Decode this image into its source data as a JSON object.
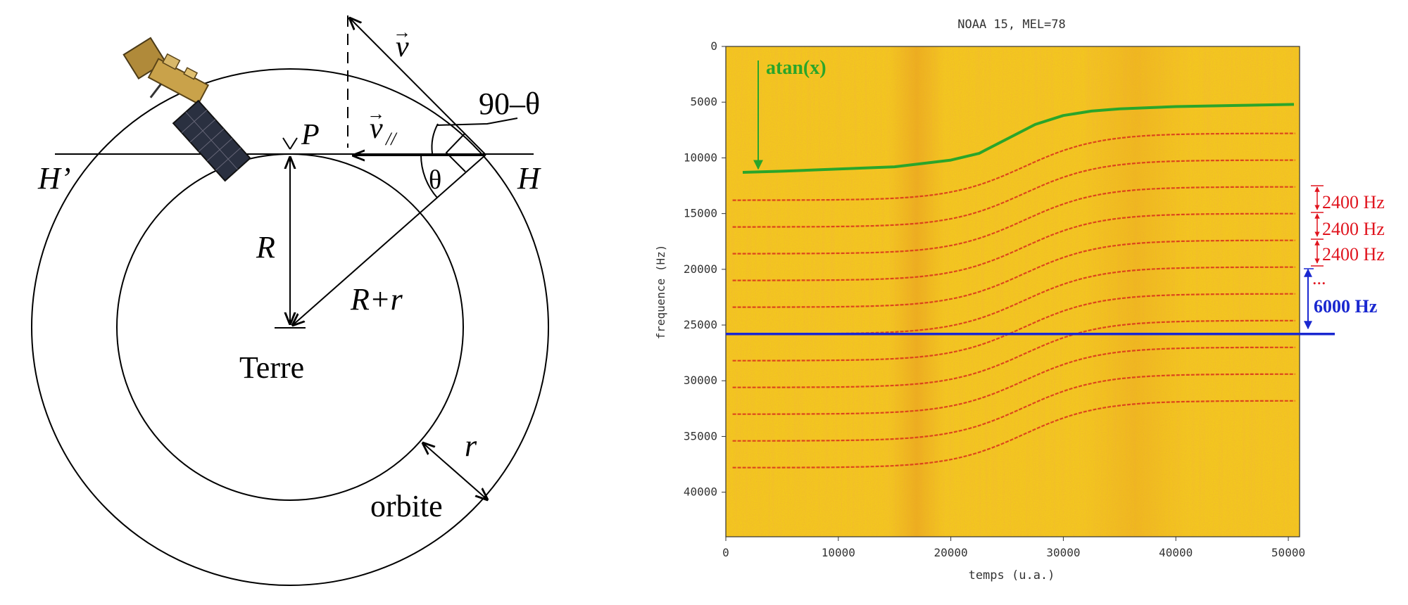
{
  "geometry_diagram": {
    "label_v": "v",
    "label_v_parallel": "v",
    "label_parallel_sub": "//",
    "label_90_theta": "90–θ",
    "label_theta": "θ",
    "label_P": "P",
    "label_H_prime": "H’",
    "label_H": "H",
    "label_R": "R",
    "label_R_plus_r": "R+r",
    "label_r": "r",
    "label_terre": "Terre",
    "label_orbite": "orbite"
  },
  "spectrogram": {
    "title": "NOAA 15, MEL=78",
    "xlabel": "temps (u.a.)",
    "ylabel": "frequence (Hz)",
    "x_ticks": [
      "0",
      "10000",
      "20000",
      "30000",
      "40000",
      "50000"
    ],
    "y_ticks": [
      "0",
      "5000",
      "10000",
      "15000",
      "20000",
      "25000",
      "30000",
      "35000",
      "40000"
    ],
    "annotation_atan": "atan(x)",
    "annotation_2400_a": "2400 Hz",
    "annotation_2400_b": "2400 Hz",
    "annotation_2400_c": "2400 Hz",
    "annotation_dots": "...",
    "annotation_6000": "6000 Hz",
    "colors": {
      "background": "#f3c81e",
      "line": "#d8301a",
      "atan_curve": "#2aa52a",
      "reference_line": "#1a28d0",
      "red_annotation": "#e0141e",
      "blue_annotation": "#1a28d0"
    }
  },
  "chart_data": {
    "type": "heatmap",
    "title": "NOAA 15, MEL=78",
    "xlabel": "temps (u.a.)",
    "ylabel": "frequence (Hz)",
    "xlim": [
      0,
      51000
    ],
    "ylim": [
      44000,
      0
    ],
    "x_ticks": [
      0,
      10000,
      20000,
      30000,
      40000,
      50000
    ],
    "y_ticks": [
      0,
      5000,
      10000,
      15000,
      20000,
      25000,
      30000,
      35000,
      40000
    ],
    "doppler_curve": {
      "name": "atan(x)",
      "x": [
        1500,
        5000,
        10000,
        15000,
        20000,
        22500,
        25000,
        27500,
        30000,
        32500,
        35000,
        40000,
        45000,
        50500
      ],
      "y": [
        11300,
        11200,
        11000,
        10800,
        10200,
        9600,
        8300,
        7000,
        6200,
        5800,
        5600,
        5400,
        5300,
        5200
      ]
    },
    "reference_frequency": 25800,
    "line_spacing_hz": 2400,
    "signal_lines_start_hz": [
      13800,
      16200,
      18600,
      21000,
      23400,
      25800,
      28200,
      30600,
      33000,
      35400,
      37800
    ]
  }
}
